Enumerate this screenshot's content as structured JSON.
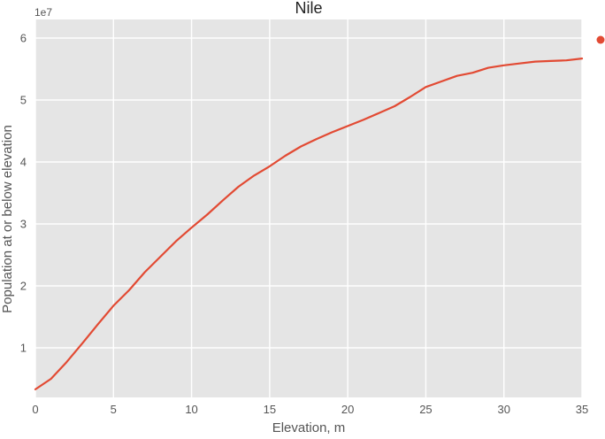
{
  "chart_data": {
    "type": "line",
    "title": "Nile",
    "xlabel": "Elevation, m",
    "ylabel": "Population at or below elevation",
    "y_offset_label": "1e7",
    "xlim": [
      0,
      35
    ],
    "ylim": [
      0.2,
      6.3
    ],
    "x_ticks": [
      0,
      5,
      10,
      15,
      20,
      25,
      30,
      35
    ],
    "y_ticks": [
      1,
      2,
      3,
      4,
      5,
      6
    ],
    "grid": true,
    "legend": "outside-right, single marker without label",
    "series": [
      {
        "color": "#E24A33",
        "x": [
          0,
          1,
          2,
          3,
          4,
          5,
          6,
          7,
          8,
          9,
          10,
          11,
          12,
          13,
          14,
          15,
          16,
          17,
          18,
          19,
          20,
          21,
          22,
          23,
          24,
          25,
          26,
          27,
          28,
          29,
          30,
          31,
          32,
          33,
          34,
          35
        ],
        "y": [
          0.33,
          0.5,
          0.77,
          1.07,
          1.38,
          1.68,
          1.93,
          2.22,
          2.47,
          2.72,
          2.94,
          3.15,
          3.38,
          3.6,
          3.78,
          3.93,
          4.1,
          4.25,
          4.37,
          4.48,
          4.58,
          4.68,
          4.79,
          4.9,
          5.05,
          5.21,
          5.3,
          5.39,
          5.44,
          5.52,
          5.56,
          5.59,
          5.62,
          5.63,
          5.64,
          5.67
        ]
      }
    ]
  },
  "colors": {
    "plot_background": "#E5E5E5",
    "grid": "#FFFFFF",
    "text": "#555555"
  }
}
